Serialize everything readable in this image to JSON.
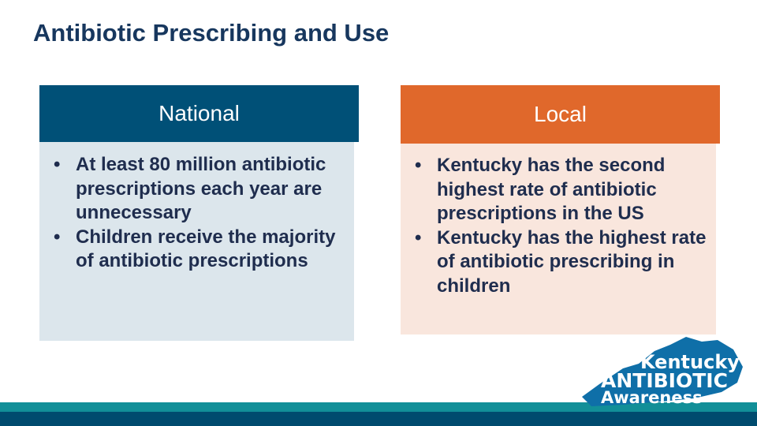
{
  "title": "Antibiotic Prescribing and Use",
  "national": {
    "header": "National",
    "bullets": [
      "At least 80 million antibiotic prescriptions each year are unnecessary",
      "Children receive the majority of antibiotic prescriptions"
    ]
  },
  "local": {
    "header": "Local",
    "bullets": [
      "Kentucky has the second highest rate of antibiotic prescriptions in the US",
      "Kentucky has the highest rate of antibiotic prescribing in children"
    ]
  },
  "logo": {
    "line1": "Kentucky",
    "line2": "ANTIBIOTIC",
    "line3": "Awareness"
  }
}
